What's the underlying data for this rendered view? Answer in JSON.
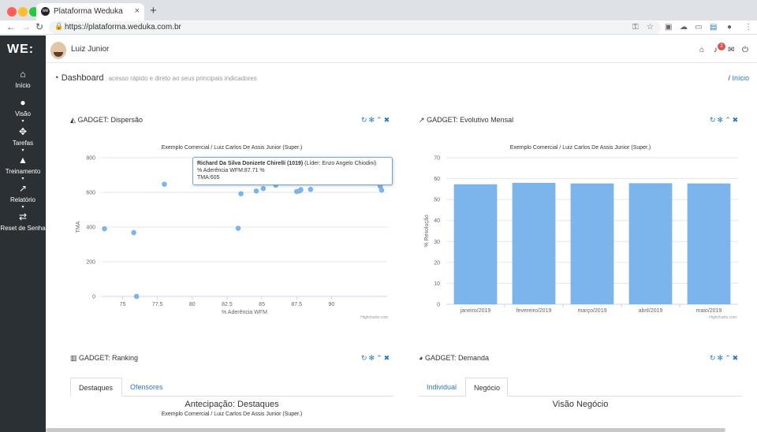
{
  "browser": {
    "tab_title": "Plataforma Weduka",
    "tab_close": "×",
    "new_tab": "+",
    "url": "https://plataforma.weduka.com.br"
  },
  "sidebar": {
    "logo": "WE:",
    "items": [
      {
        "label": "Início",
        "icon": "home-icon"
      },
      {
        "label": "Visão",
        "icon": "user-icon"
      },
      {
        "label": "Tarefas",
        "icon": "crosshair-icon"
      },
      {
        "label": "Treinamento",
        "icon": "graduation-cap-icon"
      },
      {
        "label": "Relatório",
        "icon": "line-chart-icon"
      },
      {
        "label": "Reset de Senha",
        "icon": "exchange-icon"
      }
    ]
  },
  "topbar": {
    "user_name": "Luiz Junior",
    "notification_count": "2"
  },
  "dashboard": {
    "title": "Dashboard",
    "subtitle": "acesso rápido e direto ao seus principais indicadores",
    "breadcrumb_sep": "/",
    "breadcrumb": "Início"
  },
  "gadget_dispersao": {
    "title": "GADGET: Dispersão",
    "chart_title": "Exemplo Comercial / Luiz Carlos De Assis Junior (Super.)",
    "credits": "Highcharts.com",
    "tooltip": {
      "name": "Richard Da Silva Donizete Chirelli (1019)",
      "leader": "(Líder: Enzo Angelo Chiodini)",
      "line2": "% Aderência WFM:87.71 %",
      "line3": "TMA:605"
    }
  },
  "gadget_evolutivo": {
    "title": "GADGET: Evolutivo Mensal",
    "chart_title": "Exemplo Comercial / Luiz Carlos De Assis Junior (Super.)",
    "credits": "Highcharts.com"
  },
  "gadget_ranking": {
    "title": "GADGET: Ranking",
    "tabs": [
      "Destaques",
      "Ofensores"
    ],
    "heading": "Antecipação: Destaques",
    "sub": "Exemplo Comercial / Luiz Carlos De Assis Junior (Super.)"
  },
  "gadget_demanda": {
    "title": "GADGET: Demanda",
    "tabs": [
      "Individual",
      "Negócio"
    ],
    "heading": "Visão Negócio"
  },
  "chart_data": [
    {
      "type": "scatter",
      "xlabel": "% Aderência WFM",
      "ylabel": "TMA",
      "xlim": [
        73.5,
        94
      ],
      "ylim": [
        0,
        800
      ],
      "x_ticks": [
        "75",
        "77.5",
        "80",
        "82.5",
        "85",
        "87.5",
        "90"
      ],
      "y_ticks": [
        "0",
        "200",
        "400",
        "600",
        "800"
      ],
      "color": "#7cb5ec",
      "points": [
        [
          73.7,
          390
        ],
        [
          75.8,
          368
        ],
        [
          76,
          0
        ],
        [
          78,
          647
        ],
        [
          83.3,
          393
        ],
        [
          83.5,
          592
        ],
        [
          84.6,
          608
        ],
        [
          85.1,
          622
        ],
        [
          86,
          642
        ],
        [
          87.5,
          605
        ],
        [
          87.7,
          608
        ],
        [
          87.8,
          615
        ],
        [
          88.5,
          617
        ],
        [
          93.5,
          635
        ],
        [
          93.6,
          613
        ]
      ]
    },
    {
      "type": "bar",
      "ylabel": "% Resolução",
      "ylim": [
        0,
        70
      ],
      "y_ticks": [
        "0",
        "10",
        "20",
        "30",
        "40",
        "50",
        "60",
        "70"
      ],
      "categories": [
        "janeiro/2019",
        "fevereiro/2019",
        "março/2019",
        "abril/2019",
        "maio/2019"
      ],
      "values": [
        57.3,
        58,
        57.7,
        57.8,
        57.7
      ],
      "color": "#7cb5ec"
    }
  ]
}
